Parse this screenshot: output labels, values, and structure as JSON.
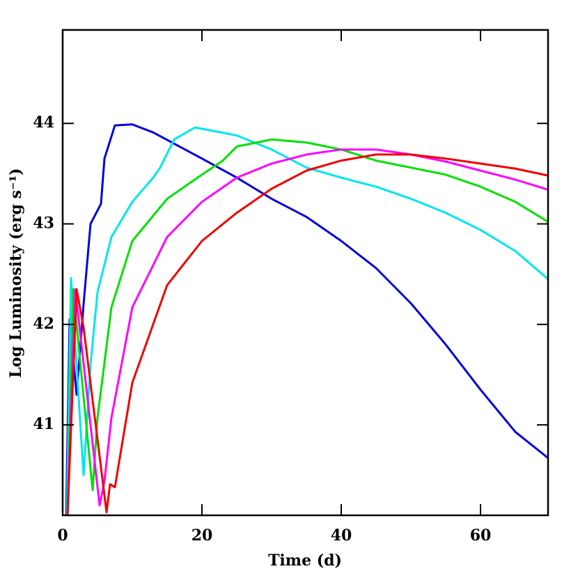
{
  "chart_data": {
    "type": "line",
    "xlabel": "Time (d)",
    "ylabel": "Log Luminosity (erg s⁻¹)",
    "xlim": [
      0,
      69.7
    ],
    "ylim": [
      40.1,
      44.93
    ],
    "xticks": [
      0,
      20,
      40,
      60
    ],
    "yticks": [
      41,
      42,
      43,
      44
    ],
    "series": [
      {
        "color": "#0000dd",
        "x": [
          0.5,
          1,
          2,
          3,
          4,
          5.5,
          6,
          7.5,
          10,
          13,
          20,
          25,
          30,
          35,
          40,
          45,
          50,
          55,
          60,
          65,
          69.7
        ],
        "values": [
          40.1,
          42.05,
          41.3,
          42.2,
          43.0,
          43.2,
          43.65,
          43.98,
          43.99,
          43.91,
          43.65,
          43.46,
          43.25,
          43.07,
          42.83,
          42.56,
          42.21,
          41.8,
          41.35,
          40.93,
          40.67
        ]
      },
      {
        "color": "#00e5ee",
        "x": [
          0.6,
          1.2,
          3,
          4,
          5,
          7,
          10,
          13,
          14,
          16,
          19,
          25,
          30,
          35,
          40,
          45,
          50,
          55,
          60,
          65,
          69.7
        ],
        "values": [
          40.1,
          42.46,
          40.5,
          41.6,
          42.32,
          42.87,
          43.22,
          43.46,
          43.56,
          43.84,
          43.96,
          43.88,
          43.74,
          43.56,
          43.46,
          43.37,
          43.25,
          43.11,
          42.94,
          42.73,
          42.45
        ]
      },
      {
        "color": "#00e000",
        "x": [
          0.7,
          1.5,
          4.3,
          5,
          7,
          10,
          15,
          20,
          23,
          25,
          30,
          35,
          40,
          45,
          50,
          55,
          60,
          65,
          69.7
        ],
        "values": [
          40.1,
          42.35,
          40.35,
          41.07,
          42.17,
          42.83,
          43.25,
          43.49,
          43.63,
          43.77,
          43.84,
          43.81,
          43.74,
          43.63,
          43.56,
          43.49,
          43.37,
          43.22,
          43.02
        ]
      },
      {
        "color": "#ff00ff",
        "x": [
          0.7,
          1.8,
          5.3,
          6,
          7,
          10,
          15,
          20,
          25,
          30,
          35,
          40,
          45,
          50,
          55,
          60,
          65,
          69.7
        ],
        "values": [
          40.1,
          42.35,
          40.2,
          40.44,
          41.07,
          42.17,
          42.87,
          43.22,
          43.46,
          43.6,
          43.69,
          43.74,
          43.74,
          43.69,
          43.62,
          43.53,
          43.44,
          43.34
        ]
      },
      {
        "color": "#ee0000",
        "x": [
          0.7,
          2,
          3,
          6.3,
          6.8,
          7.5,
          10,
          15,
          20,
          25,
          30,
          35,
          40,
          45,
          50,
          55,
          60,
          65,
          69.7
        ],
        "values": [
          40.1,
          42.35,
          41.97,
          40.13,
          40.41,
          40.38,
          41.42,
          42.39,
          42.83,
          43.11,
          43.35,
          43.53,
          43.63,
          43.69,
          43.69,
          43.65,
          43.6,
          43.55,
          43.48
        ]
      }
    ]
  }
}
